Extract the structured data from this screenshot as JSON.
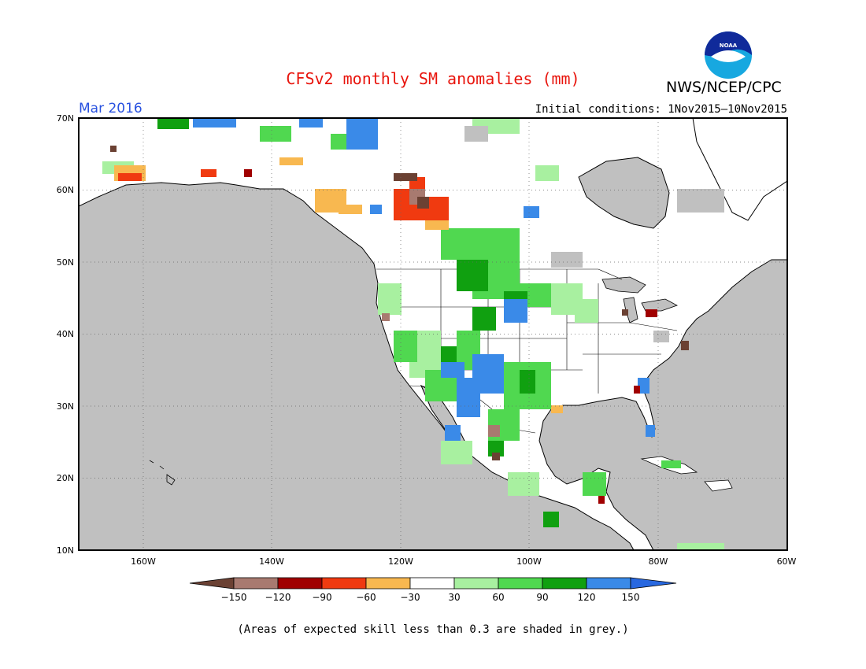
{
  "title": "CFSv2 monthly SM anomalies (mm)",
  "organization": "NWS/NCEP/CPC",
  "logo_text": "NOAA",
  "valid_period": "Mar 2016",
  "initial_conditions": "Initial conditions: 1Nov2015—10Nov2015",
  "footnote": "(Areas of expected skill less than 0.3 are shaded in grey.)",
  "map": {
    "lon_range": [
      -172,
      -60
    ],
    "lat_range": [
      10,
      70
    ],
    "lat_labels": [
      "70N",
      "60N",
      "50N",
      "40N",
      "30N",
      "20N",
      "10N"
    ],
    "lon_labels": [
      "160W",
      "140W",
      "120W",
      "100W",
      "80W",
      "60W"
    ],
    "background": "#c0c0c0",
    "grid": "dotted"
  },
  "colorbar": {
    "labels": [
      "−150",
      "−120",
      "−90",
      "−60",
      "−30",
      "30",
      "60",
      "90",
      "120",
      "150"
    ],
    "colors": [
      "#6b4133",
      "#a87a70",
      "#a00000",
      "#f03a10",
      "#f8b850",
      "#ffffff",
      "#a8f0a0",
      "#50d850",
      "#10a010",
      "#3a8ae8",
      "#2868e0"
    ]
  }
}
